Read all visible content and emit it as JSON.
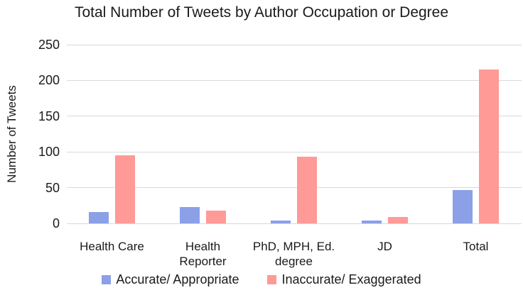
{
  "chart_data": {
    "type": "bar",
    "title": "Total Number of Tweets by Author Occupation or Degree",
    "ylabel": "Number of Tweets",
    "xlabel": "",
    "ylim": [
      0,
      250
    ],
    "yticks": [
      0,
      50,
      100,
      150,
      200,
      250
    ],
    "grid": true,
    "grid_color": "#d9d9d9",
    "legend_position": "bottom",
    "categories": [
      "Health Care",
      "Health Reporter",
      "PhD, MPH, Ed. degree",
      "JD",
      "Total"
    ],
    "category_labels": [
      "Health Care",
      "Health\nReporter",
      "PhD, MPH, Ed.\ndegree",
      "JD",
      "Total"
    ],
    "series": [
      {
        "name": "Accurate/ Appropriate",
        "color": "#8ca0e8",
        "values": [
          16,
          23,
          4,
          4,
          47
        ]
      },
      {
        "name": "Inaccurate/ Exaggerated",
        "color": "#ff9a96",
        "values": [
          95,
          18,
          93,
          9,
          215
        ]
      }
    ]
  }
}
